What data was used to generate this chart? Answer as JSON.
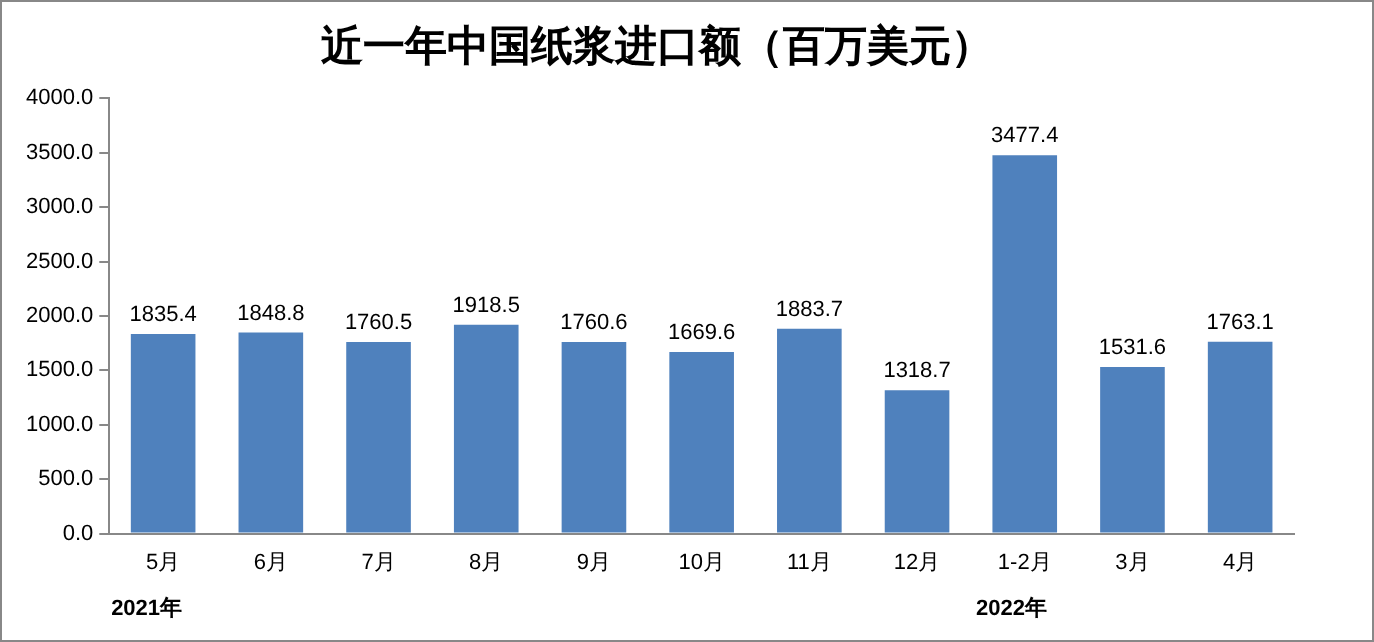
{
  "chart_data": {
    "type": "bar",
    "title": "近一年中国纸浆进口额（百万美元）",
    "categories": [
      "5月",
      "6月",
      "7月",
      "8月",
      "9月",
      "10月",
      "11月",
      "12月",
      "1-2月",
      "3月",
      "4月"
    ],
    "values": [
      1835.4,
      1848.8,
      1760.5,
      1918.5,
      1760.6,
      1669.6,
      1883.7,
      1318.7,
      3477.4,
      1531.6,
      1763.1
    ],
    "color": "#4f81bd",
    "ylim": [
      0,
      4000
    ],
    "yticks": [
      {
        "value": 0,
        "label": "0.0"
      },
      {
        "value": 500,
        "label": "500.0"
      },
      {
        "value": 1000,
        "label": "1000.0"
      },
      {
        "value": 1500,
        "label": "1500.0"
      },
      {
        "value": 2000,
        "label": "2000.0"
      },
      {
        "value": 2500,
        "label": "2500.0"
      },
      {
        "value": 3000,
        "label": "3000.0"
      },
      {
        "value": 3500,
        "label": "3500.0"
      },
      {
        "value": 4000,
        "label": "4000.0"
      }
    ],
    "data_labels": true,
    "grid": false,
    "legend": false,
    "annotations": [
      "2021年",
      "2022年"
    ]
  }
}
